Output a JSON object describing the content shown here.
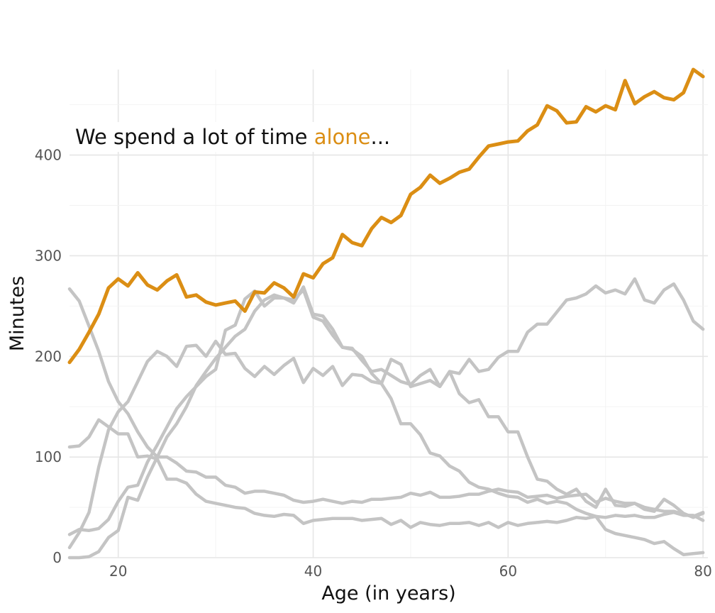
{
  "chart_data": {
    "type": "line",
    "title": "",
    "xlabel": "Age (in years)",
    "ylabel": "Minutes",
    "xlim": [
      15,
      80.5
    ],
    "ylim": [
      0,
      485
    ],
    "x_ticks": [
      20,
      40,
      60,
      80
    ],
    "y_ticks": [
      0,
      100,
      200,
      300,
      400
    ],
    "grid": true,
    "legend": "none",
    "highlight_color": "#DB8E14",
    "other_color": "#c4c4c4",
    "annotation": {
      "prefix": "We spend a lot of time ",
      "highlight": "alone",
      "suffix": "..."
    },
    "x": [
      15,
      16,
      17,
      18,
      19,
      20,
      21,
      22,
      23,
      24,
      25,
      26,
      27,
      28,
      29,
      30,
      31,
      32,
      33,
      34,
      35,
      36,
      37,
      38,
      39,
      40,
      41,
      42,
      43,
      44,
      45,
      46,
      47,
      48,
      49,
      50,
      51,
      52,
      53,
      54,
      55,
      56,
      57,
      58,
      59,
      60,
      61,
      62,
      63,
      64,
      65,
      66,
      67,
      68,
      69,
      70,
      71,
      72,
      73,
      74,
      75,
      76,
      77,
      78,
      79,
      80
    ],
    "series": [
      {
        "highlight": true,
        "values": [
          194,
          207,
          224,
          242,
          268,
          277,
          270,
          283,
          271,
          266,
          275,
          281,
          259,
          261,
          254,
          251,
          253,
          255,
          245,
          264,
          263,
          273,
          268,
          259,
          282,
          278,
          292,
          298,
          321,
          313,
          310,
          327,
          338,
          333,
          340,
          361,
          368,
          380,
          372,
          377,
          383,
          386,
          398,
          409,
          411,
          413,
          414,
          424,
          430,
          449,
          444,
          432,
          433,
          448,
          443,
          449,
          445,
          474,
          451,
          458,
          463,
          457,
          455,
          462,
          485,
          478
        ]
      },
      {
        "values": [
          267,
          255,
          230,
          205,
          175,
          155,
          143,
          125,
          110,
          100,
          100,
          94,
          86,
          85,
          80,
          80,
          72,
          70,
          64,
          66,
          66,
          64,
          62,
          57,
          55,
          56,
          58,
          56,
          54,
          56,
          55,
          58,
          58,
          59,
          60,
          64,
          62,
          65,
          60,
          60,
          61,
          63,
          63,
          66,
          68,
          66,
          65,
          60,
          61,
          62,
          59,
          61,
          62,
          63,
          55,
          59,
          56,
          54,
          54,
          50,
          48,
          46,
          46,
          43,
          41,
          45
        ]
      },
      {
        "values": [
          110,
          111,
          120,
          137,
          130,
          123,
          123,
          100,
          101,
          98,
          78,
          78,
          74,
          63,
          56,
          54,
          52,
          50,
          49,
          44,
          42,
          41,
          43,
          42,
          34,
          37,
          38,
          39,
          39,
          39,
          37,
          38,
          39,
          33,
          37,
          30,
          35,
          33,
          32,
          34,
          34,
          35,
          32,
          35,
          30,
          35,
          32,
          34,
          35,
          36,
          35,
          37,
          40,
          39,
          41,
          40,
          42,
          41,
          42,
          40,
          40,
          43,
          45,
          42,
          42,
          37
        ]
      },
      {
        "values": [
          10,
          25,
          45,
          90,
          127,
          145,
          155,
          175,
          195,
          205,
          200,
          190,
          210,
          211,
          200,
          215,
          202,
          203,
          188,
          180,
          190,
          182,
          191,
          198,
          174,
          188,
          181,
          190,
          171,
          182,
          181,
          175,
          173,
          197,
          192,
          170,
          173,
          176,
          170,
          185,
          183,
          197,
          185,
          187,
          199,
          205,
          205,
          224,
          232,
          232,
          244,
          256,
          258,
          262,
          270,
          263,
          266,
          262,
          277,
          256,
          253,
          266,
          272,
          256,
          235,
          227
        ]
      },
      {
        "values": [
          0,
          0,
          1,
          6,
          20,
          27,
          60,
          57,
          80,
          100,
          120,
          133,
          150,
          171,
          185,
          198,
          209,
          220,
          227,
          245,
          256,
          261,
          258,
          253,
          269,
          242,
          240,
          227,
          209,
          207,
          200,
          183,
          173,
          158,
          133,
          133,
          122,
          104,
          101,
          91,
          86,
          75,
          70,
          68,
          64,
          61,
          60,
          55,
          58,
          54,
          56,
          54,
          48,
          44,
          41,
          28,
          24,
          22,
          20,
          18,
          14,
          16,
          9,
          3,
          4,
          5
        ]
      },
      {
        "values": [
          23,
          28,
          27,
          29,
          38,
          56,
          70,
          72,
          95,
          112,
          130,
          148,
          160,
          170,
          180,
          187,
          226,
          231,
          257,
          265,
          250,
          258,
          258,
          256,
          266,
          239,
          235,
          221,
          209,
          208,
          196,
          185,
          187,
          181,
          175,
          172,
          181,
          187,
          170,
          185,
          163,
          154,
          157,
          140,
          140,
          125,
          125,
          100,
          78,
          76,
          68,
          63,
          68,
          56,
          50,
          68,
          52,
          51,
          54,
          48,
          46,
          58,
          52,
          44,
          40,
          44
        ]
      }
    ]
  }
}
